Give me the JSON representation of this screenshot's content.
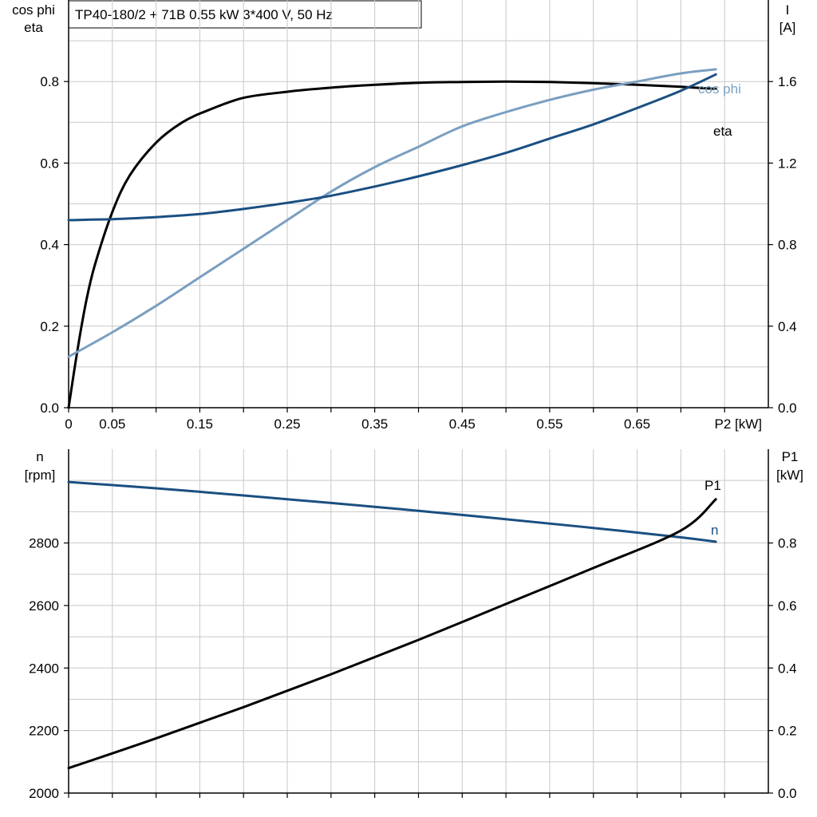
{
  "title": "TP40-180/2 + 71B   0.55 kW   3*400 V, 50 Hz",
  "colors": {
    "dark": "#000000",
    "blue": "#1a4f82",
    "lightblue": "#7a9fc0",
    "grid": "#c8c8c8"
  },
  "chart_data": [
    {
      "type": "line",
      "ylabel_left": [
        "cos phi",
        "eta"
      ],
      "ylabel_right": [
        "I",
        "[A]"
      ],
      "xlabel": "P2 [kW]",
      "xlim": [
        0,
        0.8
      ],
      "ylim_left": [
        0,
        1.0
      ],
      "ylim_right": [
        0,
        2.0
      ],
      "x_tick_labels": [
        "0",
        "0.05",
        "0.15",
        "0.25",
        "0.35",
        "0.45",
        "0.55",
        "0.65"
      ],
      "x_tick_values": [
        0,
        0.05,
        0.15,
        0.25,
        0.35,
        0.45,
        0.55,
        0.65
      ],
      "y_left_ticks": [
        "0.0",
        "0.2",
        "0.4",
        "0.6",
        "0.8"
      ],
      "y_left_tick_values": [
        0,
        0.2,
        0.4,
        0.6,
        0.8
      ],
      "y_right_ticks": [
        "0.0",
        "0.4",
        "0.8",
        "1.2",
        "1.6"
      ],
      "y_right_tick_values": [
        0,
        0.4,
        0.8,
        1.2,
        1.6
      ],
      "grid": true,
      "series": [
        {
          "name": "eta",
          "axis": "left",
          "color": "#000000",
          "x": [
            0,
            0.01,
            0.02,
            0.03,
            0.05,
            0.07,
            0.1,
            0.13,
            0.16,
            0.2,
            0.25,
            0.3,
            0.35,
            0.4,
            0.45,
            0.5,
            0.55,
            0.6,
            0.65,
            0.7,
            0.74
          ],
          "y": [
            0,
            0.14,
            0.26,
            0.35,
            0.48,
            0.57,
            0.65,
            0.7,
            0.73,
            0.76,
            0.775,
            0.785,
            0.792,
            0.797,
            0.799,
            0.8,
            0.799,
            0.796,
            0.792,
            0.787,
            0.782
          ]
        },
        {
          "name": "cos phi",
          "axis": "left",
          "color": "#7a9fc0",
          "x": [
            0,
            0.05,
            0.1,
            0.15,
            0.2,
            0.25,
            0.3,
            0.35,
            0.4,
            0.45,
            0.5,
            0.55,
            0.6,
            0.65,
            0.7,
            0.74
          ],
          "y": [
            0.125,
            0.185,
            0.25,
            0.32,
            0.39,
            0.46,
            0.53,
            0.59,
            0.64,
            0.69,
            0.725,
            0.755,
            0.78,
            0.8,
            0.82,
            0.83
          ]
        },
        {
          "name": "I",
          "axis": "right",
          "color": "#1a4f82",
          "x": [
            0,
            0.05,
            0.1,
            0.15,
            0.2,
            0.25,
            0.3,
            0.35,
            0.4,
            0.45,
            0.5,
            0.55,
            0.6,
            0.65,
            0.7,
            0.74
          ],
          "y": [
            0.92,
            0.925,
            0.935,
            0.95,
            0.975,
            1.005,
            1.04,
            1.085,
            1.135,
            1.19,
            1.25,
            1.32,
            1.39,
            1.47,
            1.555,
            1.635
          ]
        }
      ],
      "curve_labels": [
        {
          "text": "cos phi",
          "color": "#7a9fc0"
        },
        {
          "text": "eta",
          "color": "#000000"
        }
      ]
    },
    {
      "type": "line",
      "ylabel_left": [
        "n",
        "[rpm]"
      ],
      "ylabel_right": [
        "P1",
        "[kW]"
      ],
      "xlim": [
        0,
        0.8
      ],
      "ylim_left": [
        2000,
        3100
      ],
      "ylim_right": [
        0,
        1.1
      ],
      "y_left_ticks": [
        "2000",
        "2200",
        "2400",
        "2600",
        "2800"
      ],
      "y_left_tick_values": [
        2000,
        2200,
        2400,
        2600,
        2800
      ],
      "y_right_ticks": [
        "0.0",
        "0.2",
        "0.4",
        "0.6",
        "0.8"
      ],
      "y_right_tick_values": [
        0,
        0.2,
        0.4,
        0.6,
        0.8
      ],
      "grid": true,
      "series": [
        {
          "name": "n",
          "axis": "left",
          "color": "#1a4f82",
          "x": [
            0,
            0.1,
            0.2,
            0.3,
            0.4,
            0.5,
            0.6,
            0.7,
            0.74
          ],
          "y": [
            2995,
            2975,
            2952,
            2928,
            2903,
            2876,
            2848,
            2818,
            2804
          ]
        },
        {
          "name": "P1",
          "axis": "right",
          "color": "#000000",
          "x": [
            0,
            0.1,
            0.2,
            0.3,
            0.4,
            0.5,
            0.6,
            0.7,
            0.74
          ],
          "y": [
            0.08,
            0.175,
            0.275,
            0.38,
            0.49,
            0.605,
            0.72,
            0.84,
            0.94
          ]
        }
      ],
      "curve_labels": [
        {
          "text": "P1",
          "color": "#000000"
        },
        {
          "text": "n",
          "color": "#1a4f82"
        }
      ]
    }
  ]
}
